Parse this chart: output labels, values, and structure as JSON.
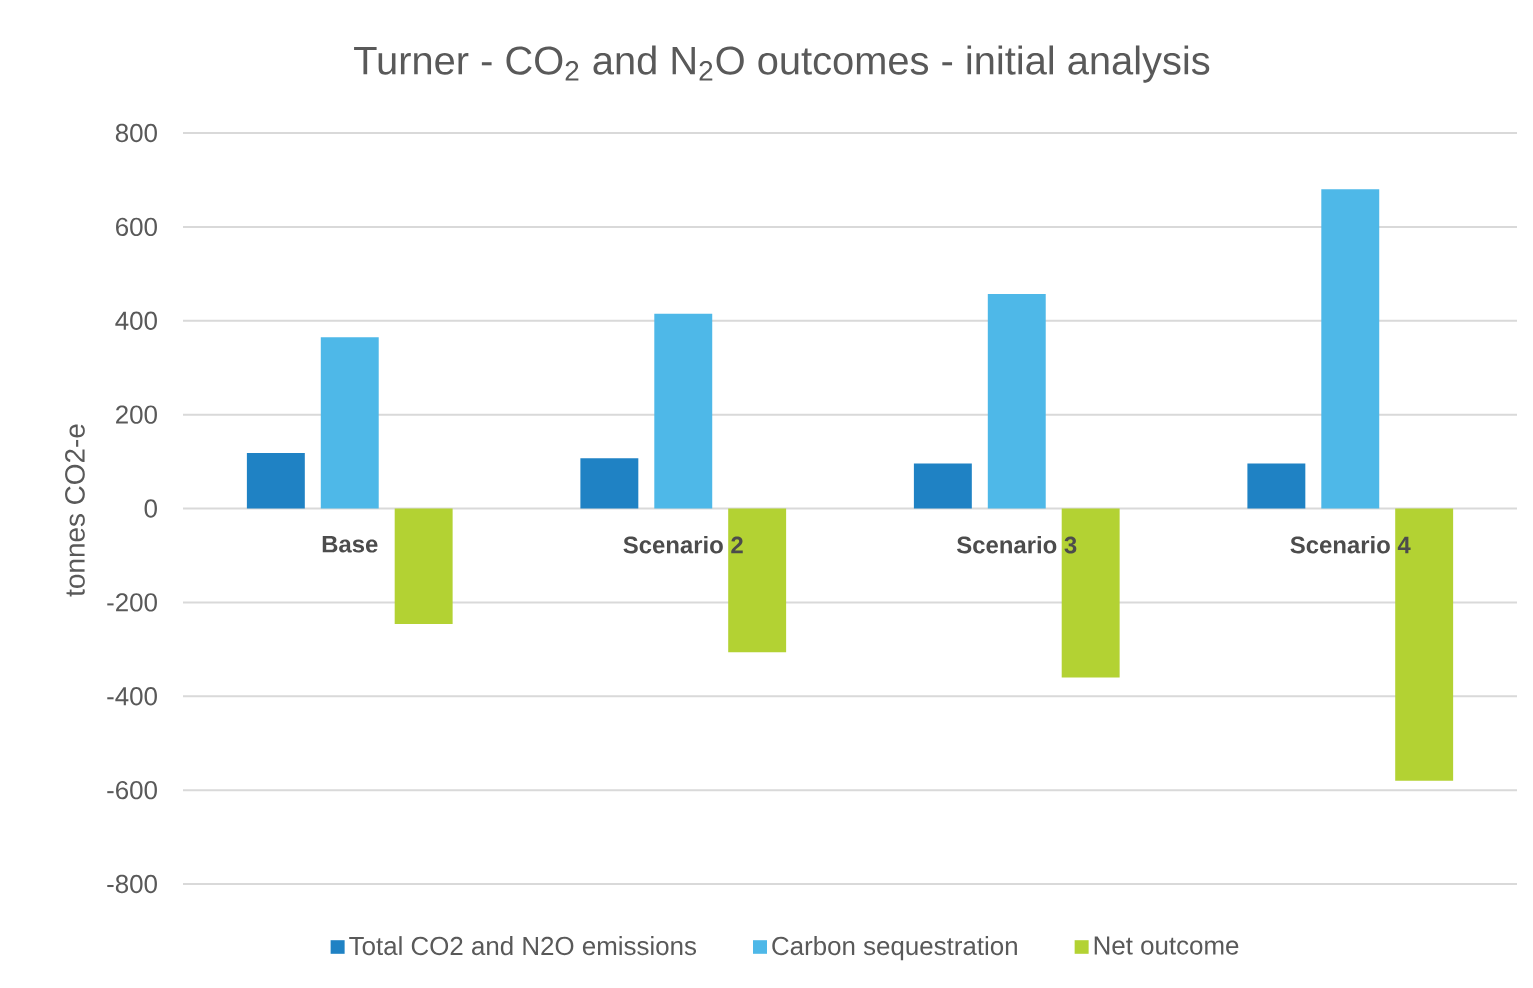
{
  "chart_data": {
    "type": "bar",
    "title": "Turner - CO$_{2}$ and N$_{2}$O outcomes - initial analysis",
    "ylabel": "tonnes CO2-e",
    "categories": [
      "Base",
      "Scenario 2",
      "Scenario 3",
      "Scenario 4"
    ],
    "series": [
      {
        "name": "Total CO2 and N2O emissions",
        "color": "#1f82c4",
        "values": [
          118,
          107,
          96,
          96
        ]
      },
      {
        "name": "Carbon sequestration",
        "color": "#4eb8e8",
        "values": [
          365,
          415,
          457,
          680
        ]
      },
      {
        "name": "Net outcome",
        "color": "#b3d233",
        "values": [
          -246,
          -306,
          -360,
          -580
        ]
      }
    ],
    "ylim": [
      -800,
      800
    ],
    "yticks": [
      -800,
      -600,
      -400,
      -200,
      0,
      200,
      400,
      600,
      800
    ],
    "grid": "y",
    "legend": "bottom"
  }
}
